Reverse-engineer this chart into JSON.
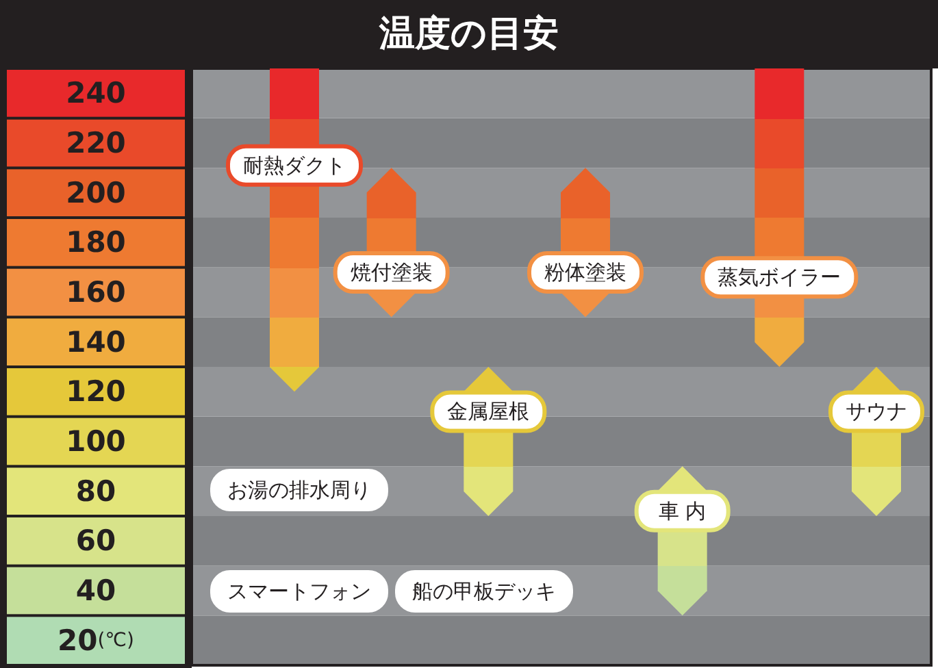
{
  "chart_data": {
    "type": "bar",
    "title": "温度の目安",
    "categories": [
      "耐熱ダクト",
      "焼付塗装",
      "金属屋根",
      "粉体塗装",
      "車 内",
      "蒸気ボイラー",
      "サウナ"
    ],
    "base": [
      120,
      150,
      70,
      150,
      30,
      130,
      70
    ],
    "values": [
      130,
      60,
      60,
      60,
      60,
      120,
      60
    ],
    "ylim": [
      10,
      250
    ],
    "yticks": [
      {
        "value": 20,
        "label": "20(℃)"
      },
      40,
      60,
      80,
      100,
      120,
      140,
      160,
      180,
      200,
      220,
      240
    ],
    "annotations": [
      "お湯の排水周り",
      "スマートフォン",
      "船の甲板デッキ"
    ],
    "bands": [
      {
        "axis": "y",
        "from": 10,
        "to": 30,
        "color": "#808285"
      },
      {
        "axis": "y",
        "from": 30,
        "to": 50,
        "color": "#939598"
      },
      {
        "axis": "y",
        "from": 50,
        "to": 70,
        "color": "#808285"
      },
      {
        "axis": "y",
        "from": 70,
        "to": 90,
        "color": "#939598"
      },
      {
        "axis": "y",
        "from": 90,
        "to": 110,
        "color": "#808285"
      },
      {
        "axis": "y",
        "from": 110,
        "to": 130,
        "color": "#939598"
      },
      {
        "axis": "y",
        "from": 130,
        "to": 150,
        "color": "#808285"
      },
      {
        "axis": "y",
        "from": 150,
        "to": 170,
        "color": "#939598"
      },
      {
        "axis": "y",
        "from": 170,
        "to": 190,
        "color": "#808285"
      },
      {
        "axis": "y",
        "from": 190,
        "to": 210,
        "color": "#939598"
      },
      {
        "axis": "y",
        "from": 210,
        "to": 230,
        "color": "#808285"
      },
      {
        "axis": "y",
        "from": 230,
        "to": 250,
        "color": "#939598"
      }
    ]
  }
}
